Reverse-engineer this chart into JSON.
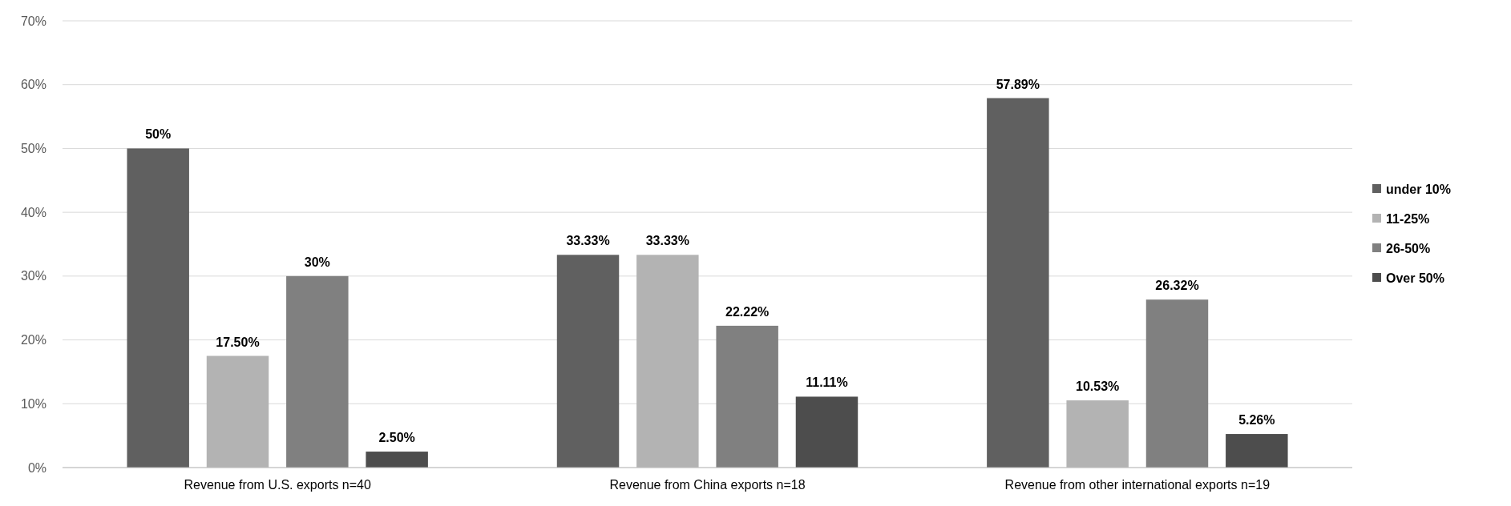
{
  "chart_data": {
    "type": "bar",
    "categories": [
      "Revenue from U.S. exports n=40",
      "Revenue from China exports n=18",
      "Revenue from other international exports n=19"
    ],
    "series": [
      {
        "name": "under 10%",
        "color": "#606060",
        "values": [
          50,
          33.33,
          57.89
        ],
        "value_labels": [
          "50%",
          "33.33%",
          "57.89%"
        ]
      },
      {
        "name": "11-25%",
        "color": "#b3b3b3",
        "values": [
          17.5,
          33.33,
          10.53
        ],
        "value_labels": [
          "17.50%",
          "33.33%",
          "10.53%"
        ]
      },
      {
        "name": "26-50%",
        "color": "#808080",
        "values": [
          30,
          22.22,
          26.32
        ],
        "value_labels": [
          "30%",
          "22.22%",
          "26.32%"
        ]
      },
      {
        "name": "Over 50%",
        "color": "#4d4d4d",
        "values": [
          2.5,
          11.11,
          5.26
        ],
        "value_labels": [
          "2.50%",
          "11.11%",
          "5.26%"
        ]
      }
    ],
    "ylim": [
      0,
      70
    ],
    "yticks": [
      {
        "value": 0,
        "label": "0%"
      },
      {
        "value": 10,
        "label": "10%"
      },
      {
        "value": 20,
        "label": "20%"
      },
      {
        "value": 30,
        "label": "30%"
      },
      {
        "value": 40,
        "label": "40%"
      },
      {
        "value": 50,
        "label": "50%"
      },
      {
        "value": 60,
        "label": "60%"
      },
      {
        "value": 70,
        "label": "70%"
      }
    ],
    "grid": "y",
    "legend": "right"
  }
}
